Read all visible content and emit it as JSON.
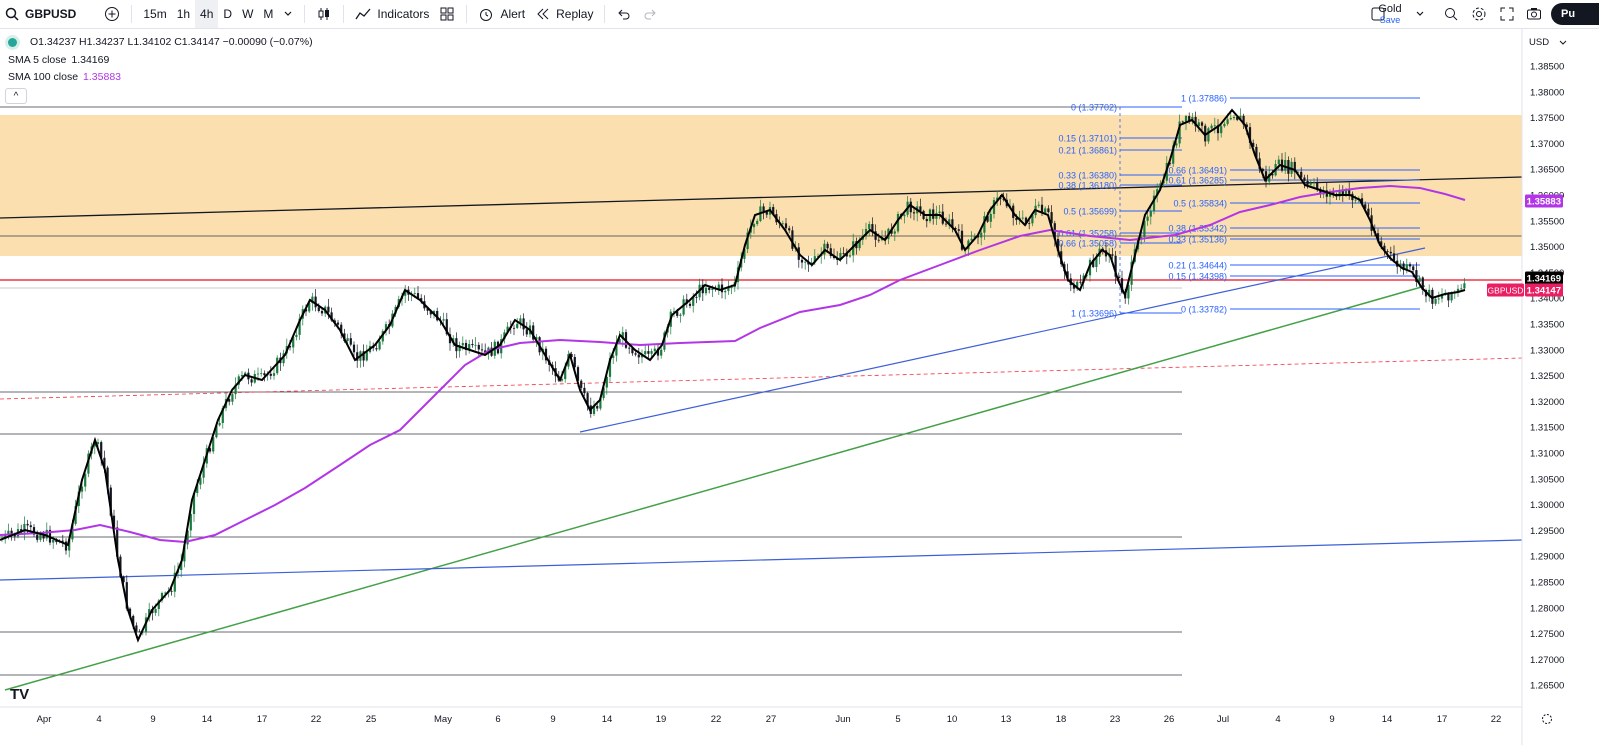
{
  "toolbar": {
    "symbol": "GBPUSD",
    "intervals": [
      "15m",
      "1h",
      "4h",
      "D",
      "W",
      "M"
    ],
    "active_interval": "4h",
    "indicators_label": "Indicators",
    "alert_label": "Alert",
    "replay_label": "Replay",
    "layout_name": "Gold",
    "layout_status": "Save",
    "publish_label": "Pu"
  },
  "legend": {
    "ohlc": "O1.34237 H1.34237 L1.34102 C1.34147 −0.00090 (−0.07%)",
    "sma5_label": "SMA 5 close",
    "sma5_value": "1.34169",
    "sma100_label": "SMA 100 close",
    "sma100_value": "1.35883"
  },
  "axis": {
    "currency": "USD",
    "price_ticks": [
      "1.38500",
      "1.38000",
      "1.37500",
      "1.37000",
      "1.36500",
      "1.36000",
      "1.35500",
      "1.35000",
      "1.34500",
      "1.34000",
      "1.33500",
      "1.33000",
      "1.32500",
      "1.32000",
      "1.31500",
      "1.31000",
      "1.30500",
      "1.30000",
      "1.29500",
      "1.29000",
      "1.28500",
      "1.28000",
      "1.27500",
      "1.27000",
      "1.26500"
    ],
    "time_ticks": [
      "Apr",
      "4",
      "9",
      "14",
      "17",
      "22",
      "25",
      "May",
      "6",
      "9",
      "14",
      "19",
      "22",
      "27",
      "Jun",
      "5",
      "10",
      "13",
      "18",
      "23",
      "26",
      "Jul",
      "4",
      "9",
      "14",
      "17",
      "22"
    ],
    "tags": {
      "sma5": "1.34169",
      "sma100": "1.35883",
      "symbol_label": "GBPUSD",
      "last_price": "1.34147"
    }
  },
  "fib_left": [
    "0 (1.37702)",
    "0.15 (1.37101)",
    "0.21 (1.36861)",
    "0.33 (1.36380)",
    "0.38 (1.36180)",
    "0.5 (1.35699)",
    "0.61 (1.35258)",
    "0.66 (1.35058)",
    "1 (1.33696)"
  ],
  "fib_right": [
    "1 (1.37886)",
    "0.66 (1.36491)",
    "0.61 (1.36285)",
    "0.5 (1.35834)",
    "0.38 (1.35342)",
    "0.33 (1.35136)",
    "0.21 (1.34644)",
    "0.15 (1.34398)",
    "0 (1.33782)"
  ],
  "colors": {
    "zone": "#fbdfae",
    "sma100": "#b236e6",
    "sma5": "#000000",
    "fib": "#2962ff",
    "trend_green": "#43a047",
    "trend_blue": "#3d5fd9",
    "bear_tag": "#e91e63",
    "red_line": "#f23645"
  },
  "chart_data": {
    "type": "line",
    "symbol": "GBPUSD",
    "timeframe": "4h",
    "ylim": [
      1.262,
      1.389
    ],
    "x": [
      "Apr",
      "4",
      "9",
      "14",
      "17",
      "22",
      "25",
      "May",
      "6",
      "9",
      "14",
      "19",
      "22",
      "27",
      "Jun",
      "5",
      "10",
      "13",
      "18",
      "23",
      "26",
      "Jul",
      "4",
      "9",
      "14",
      "17"
    ],
    "series": [
      {
        "name": "SMA 5 close",
        "values": [
          1.293,
          1.312,
          1.272,
          1.318,
          1.334,
          1.342,
          1.332,
          1.337,
          1.331,
          1.333,
          1.322,
          1.332,
          1.343,
          1.357,
          1.349,
          1.356,
          1.349,
          1.357,
          1.347,
          1.34,
          1.362,
          1.375,
          1.368,
          1.362,
          1.348,
          1.34
        ]
      },
      {
        "name": "SMA 100 close",
        "values": [
          1.294,
          1.296,
          1.294,
          1.296,
          1.306,
          1.315,
          1.326,
          1.331,
          1.332,
          1.332,
          1.33,
          1.329,
          1.33,
          1.332,
          1.337,
          1.342,
          1.346,
          1.349,
          1.35,
          1.351,
          1.354,
          1.357,
          1.359,
          1.359,
          1.36,
          1.359
        ]
      }
    ]
  }
}
